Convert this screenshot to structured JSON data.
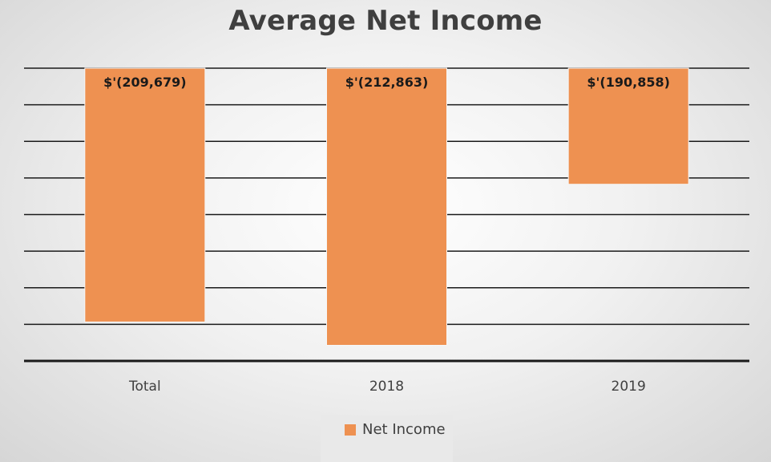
{
  "chart_data": {
    "type": "bar",
    "title": "Average Net Income",
    "categories": [
      "Total",
      "2018",
      "2019"
    ],
    "series": [
      {
        "name": "Net Income",
        "values": [
          -209679,
          -212863,
          -190858
        ],
        "labels": [
          "$'(209,679)",
          "$'(212,863)",
          "$'(190,858)"
        ]
      }
    ],
    "ylim": [
      -215000,
      -175000
    ],
    "gridlines": true,
    "legend_position": "bottom",
    "bar_color": "#ee9151"
  }
}
